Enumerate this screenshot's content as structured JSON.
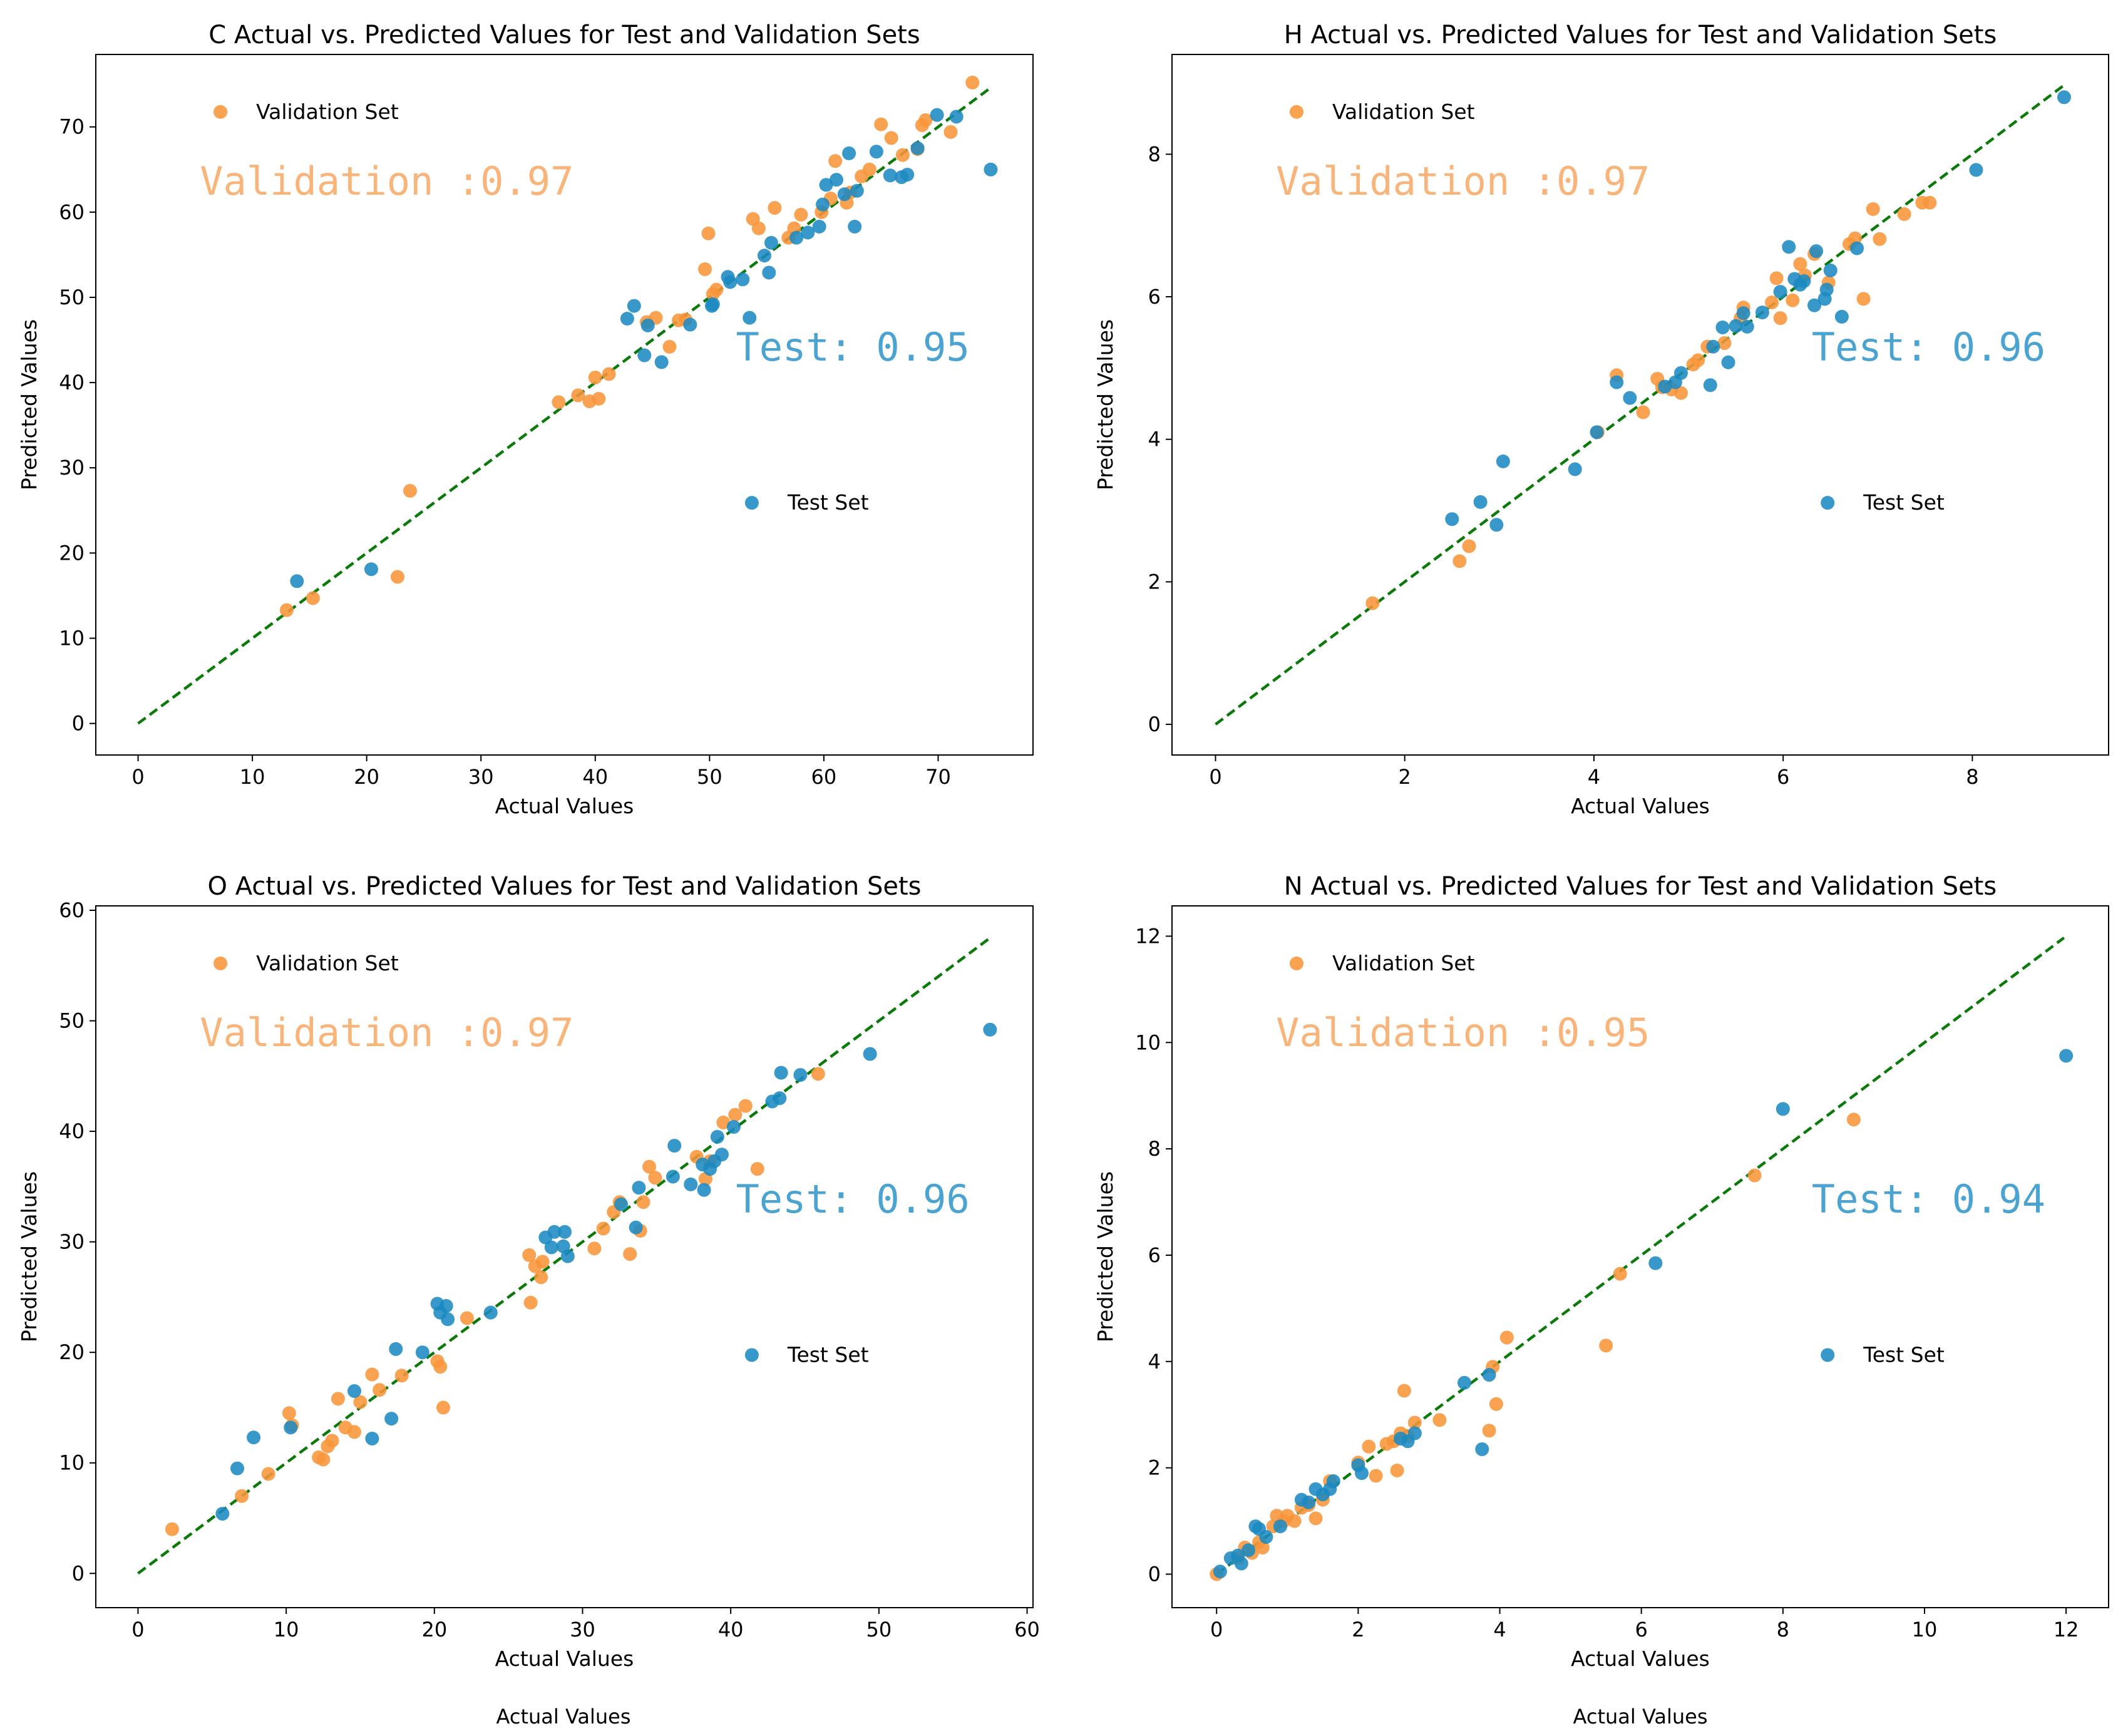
{
  "colors": {
    "test": "#1b8ac1",
    "validation": "#f7953a",
    "test_text": "#4aa3d1",
    "validation_text": "#f9b47a",
    "ideal_line": "#0b7a0b"
  },
  "chart_data": [
    {
      "id": "C",
      "type": "scatter",
      "title": "C Actual vs. Predicted Values for Test and Validation Sets",
      "xlabel": "Actual Values",
      "ylabel": "Predicted Values",
      "xlim": [
        -3.7,
        78.3
      ],
      "ylim": [
        -3.7,
        78.5
      ],
      "xticks": [
        0,
        10,
        20,
        30,
        40,
        50,
        60,
        70
      ],
      "yticks": [
        0,
        10,
        20,
        30,
        40,
        50,
        60,
        70
      ],
      "ideal_line": [
        0,
        74.6
      ],
      "legend_validation": "Validation Set",
      "legend_test": "Test Set",
      "validation_score": "Validation :0.97",
      "test_score": "Test: 0.95",
      "validation": [
        [
          13,
          13.3
        ],
        [
          15.3,
          14.7
        ],
        [
          22.7,
          17.2
        ],
        [
          23.8,
          27.3
        ],
        [
          36.8,
          37.7
        ],
        [
          38.5,
          38.5
        ],
        [
          39.5,
          37.8
        ],
        [
          40,
          40.6
        ],
        [
          40.3,
          38.1
        ],
        [
          41.2,
          41
        ],
        [
          44.5,
          47.1
        ],
        [
          45.3,
          47.6
        ],
        [
          46.5,
          44.2
        ],
        [
          47.3,
          47.3
        ],
        [
          47.9,
          47.4
        ],
        [
          49.6,
          53.3
        ],
        [
          49.9,
          57.5
        ],
        [
          50.3,
          50.4
        ],
        [
          50.6,
          50.9
        ],
        [
          53.8,
          59.2
        ],
        [
          54.3,
          58.1
        ],
        [
          55.7,
          60.5
        ],
        [
          56.9,
          57
        ],
        [
          57.4,
          58.1
        ],
        [
          58,
          59.7
        ],
        [
          59.8,
          60
        ],
        [
          60.6,
          61.6
        ],
        [
          61,
          66
        ],
        [
          62,
          61.1
        ],
        [
          62.3,
          62.3
        ],
        [
          63.3,
          64.2
        ],
        [
          64,
          65
        ],
        [
          65,
          70.3
        ],
        [
          65.9,
          68.7
        ],
        [
          66.9,
          66.7
        ],
        [
          68.2,
          67.4
        ],
        [
          68.6,
          70.2
        ],
        [
          68.9,
          70.8
        ],
        [
          71.1,
          69.4
        ],
        [
          73,
          75.2
        ]
      ],
      "test": [
        [
          13.9,
          16.7
        ],
        [
          20.4,
          18.1
        ],
        [
          42.8,
          47.5
        ],
        [
          43.4,
          49
        ],
        [
          44.3,
          43.2
        ],
        [
          44.6,
          46.7
        ],
        [
          45.8,
          42.4
        ],
        [
          48.3,
          46.8
        ],
        [
          50.2,
          49
        ],
        [
          50.3,
          49.2
        ],
        [
          51.6,
          52.4
        ],
        [
          51.8,
          51.8
        ],
        [
          52.9,
          52.1
        ],
        [
          53.5,
          47.6
        ],
        [
          54.8,
          54.9
        ],
        [
          55.2,
          52.9
        ],
        [
          55.4,
          56.4
        ],
        [
          57.6,
          57
        ],
        [
          58.6,
          57.6
        ],
        [
          59.6,
          58.3
        ],
        [
          59.9,
          60.9
        ],
        [
          60.2,
          63.2
        ],
        [
          61.1,
          63.8
        ],
        [
          61.8,
          62.1
        ],
        [
          62.2,
          66.9
        ],
        [
          62.7,
          58.3
        ],
        [
          62.9,
          62.5
        ],
        [
          64.6,
          67.1
        ],
        [
          65.8,
          64.3
        ],
        [
          66.8,
          64.1
        ],
        [
          67.3,
          64.4
        ],
        [
          68.2,
          67.5
        ],
        [
          69.9,
          71.4
        ],
        [
          71.6,
          71.2
        ],
        [
          74.6,
          65
        ]
      ]
    },
    {
      "id": "H",
      "type": "scatter",
      "title": "H Actual vs. Predicted Values for Test and Validation Sets",
      "xlabel": "Actual Values",
      "ylabel": "Predicted Values",
      "xlim": [
        -0.46,
        9.44
      ],
      "ylim": [
        -0.43,
        9.4
      ],
      "xticks": [
        0,
        2,
        4,
        6,
        8
      ],
      "yticks": [
        0,
        2,
        4,
        6,
        8
      ],
      "ideal_line": [
        0,
        8.97
      ],
      "legend_validation": "Validation Set",
      "legend_test": "Test Set",
      "validation_score": "Validation :0.97",
      "test_score": "Test: 0.96",
      "validation": [
        [
          1.66,
          1.7
        ],
        [
          2.58,
          2.29
        ],
        [
          2.68,
          2.5
        ],
        [
          4.04,
          4.1
        ],
        [
          4.24,
          4.9
        ],
        [
          4.52,
          4.38
        ],
        [
          4.67,
          4.85
        ],
        [
          4.72,
          4.73
        ],
        [
          4.82,
          4.7
        ],
        [
          4.92,
          4.65
        ],
        [
          5.05,
          5.05
        ],
        [
          5.1,
          5.11
        ],
        [
          5.2,
          5.3
        ],
        [
          5.38,
          5.35
        ],
        [
          5.55,
          5.7
        ],
        [
          5.58,
          5.85
        ],
        [
          5.88,
          5.92
        ],
        [
          5.93,
          6.26
        ],
        [
          5.97,
          5.7
        ],
        [
          6.1,
          5.95
        ],
        [
          6.18,
          6.46
        ],
        [
          6.23,
          6.3
        ],
        [
          6.33,
          6.6
        ],
        [
          6.48,
          6.2
        ],
        [
          6.7,
          6.74
        ],
        [
          6.76,
          6.82
        ],
        [
          6.85,
          5.97
        ],
        [
          6.95,
          7.23
        ],
        [
          7.02,
          6.81
        ],
        [
          7.28,
          7.16
        ],
        [
          7.47,
          7.32
        ],
        [
          7.55,
          7.32
        ]
      ],
      "test": [
        [
          2.5,
          2.88
        ],
        [
          2.8,
          3.12
        ],
        [
          2.97,
          2.8
        ],
        [
          3.04,
          3.69
        ],
        [
          3.8,
          3.58
        ],
        [
          4.03,
          4.1
        ],
        [
          4.24,
          4.8
        ],
        [
          4.38,
          4.58
        ],
        [
          4.75,
          4.74
        ],
        [
          4.86,
          4.8
        ],
        [
          4.92,
          4.93
        ],
        [
          5.23,
          4.76
        ],
        [
          5.26,
          5.3
        ],
        [
          5.36,
          5.57
        ],
        [
          5.42,
          5.08
        ],
        [
          5.5,
          5.59
        ],
        [
          5.58,
          5.77
        ],
        [
          5.62,
          5.58
        ],
        [
          5.78,
          5.78
        ],
        [
          5.97,
          6.07
        ],
        [
          6.06,
          6.7
        ],
        [
          6.12,
          6.25
        ],
        [
          6.18,
          6.17
        ],
        [
          6.22,
          6.22
        ],
        [
          6.33,
          5.88
        ],
        [
          6.35,
          6.64
        ],
        [
          6.44,
          5.97
        ],
        [
          6.46,
          6.1
        ],
        [
          6.5,
          6.37
        ],
        [
          6.62,
          5.72
        ],
        [
          6.78,
          6.68
        ],
        [
          8.04,
          7.78
        ],
        [
          8.97,
          8.8
        ]
      ]
    },
    {
      "id": "O",
      "type": "scatter",
      "title": "O Actual vs. Predicted Values for Test and Validation Sets",
      "xlabel": "Actual Values",
      "ylabel": "Predicted Values",
      "xlim": [
        -2.85,
        60.4
      ],
      "ylim": [
        -3.1,
        60.4
      ],
      "xticks": [
        0,
        10,
        20,
        30,
        40,
        50,
        60
      ],
      "yticks": [
        0,
        10,
        20,
        30,
        40,
        50,
        60
      ],
      "ideal_line": [
        0,
        57.5
      ],
      "legend_validation": "Validation Set",
      "legend_test": "Test Set",
      "validation_score": "Validation :0.97",
      "test_score": "Test: 0.96",
      "validation": [
        [
          2.3,
          4
        ],
        [
          7,
          7
        ],
        [
          8.8,
          9
        ],
        [
          10.2,
          14.5
        ],
        [
          10.4,
          13.4
        ],
        [
          12.2,
          10.5
        ],
        [
          12.5,
          10.3
        ],
        [
          12.8,
          11.5
        ],
        [
          13.1,
          12
        ],
        [
          13.5,
          15.8
        ],
        [
          14,
          13.2
        ],
        [
          14.6,
          12.8
        ],
        [
          15,
          15.5
        ],
        [
          15.8,
          18
        ],
        [
          16.3,
          16.6
        ],
        [
          17.8,
          17.9
        ],
        [
          20.2,
          19.2
        ],
        [
          20.4,
          18.7
        ],
        [
          20.6,
          15
        ],
        [
          22.2,
          23.1
        ],
        [
          26.4,
          28.8
        ],
        [
          26.5,
          24.5
        ],
        [
          26.8,
          27.8
        ],
        [
          27.2,
          26.8
        ],
        [
          27.3,
          28.2
        ],
        [
          30.8,
          29.4
        ],
        [
          31.4,
          31.2
        ],
        [
          32.1,
          32.7
        ],
        [
          32.5,
          33.6
        ],
        [
          33.2,
          28.9
        ],
        [
          33.9,
          31
        ],
        [
          34.1,
          33.6
        ],
        [
          34.5,
          36.8
        ],
        [
          34.9,
          35.8
        ],
        [
          37.7,
          37.7
        ],
        [
          38.3,
          35.7
        ],
        [
          38.6,
          37.3
        ],
        [
          39.5,
          40.8
        ],
        [
          40.3,
          41.5
        ],
        [
          41,
          42.3
        ],
        [
          41.8,
          36.6
        ],
        [
          45.9,
          45.2
        ]
      ],
      "test": [
        [
          5.7,
          5.4
        ],
        [
          6.7,
          9.5
        ],
        [
          7.8,
          12.3
        ],
        [
          10.3,
          13.2
        ],
        [
          14.6,
          16.5
        ],
        [
          15.8,
          12.2
        ],
        [
          17.1,
          14
        ],
        [
          17.4,
          20.3
        ],
        [
          19.2,
          20
        ],
        [
          20.2,
          24.4
        ],
        [
          20.4,
          23.6
        ],
        [
          20.8,
          24.2
        ],
        [
          20.9,
          23
        ],
        [
          23.8,
          23.6
        ],
        [
          27.5,
          30.4
        ],
        [
          27.9,
          29.5
        ],
        [
          28.1,
          30.9
        ],
        [
          28.7,
          29.6
        ],
        [
          28.8,
          30.9
        ],
        [
          29,
          28.7
        ],
        [
          32.6,
          33.4
        ],
        [
          33.6,
          31.3
        ],
        [
          33.8,
          34.9
        ],
        [
          36.1,
          35.9
        ],
        [
          36.2,
          38.7
        ],
        [
          37.3,
          35.2
        ],
        [
          38.1,
          37
        ],
        [
          38.2,
          34.7
        ],
        [
          38.6,
          36.6
        ],
        [
          38.9,
          37.3
        ],
        [
          39.1,
          39.5
        ],
        [
          39.4,
          37.9
        ],
        [
          40.2,
          40.4
        ],
        [
          42.8,
          42.7
        ],
        [
          43.3,
          43
        ],
        [
          43.4,
          45.3
        ],
        [
          44.7,
          45.1
        ],
        [
          49.4,
          47
        ],
        [
          57.5,
          49.2
        ]
      ]
    },
    {
      "id": "N",
      "type": "scatter",
      "title": "N Actual vs. Predicted Values for Test and Validation Sets",
      "xlabel": "Actual Values",
      "ylabel": "Predicted Values",
      "xlim": [
        -0.63,
        12.6
      ],
      "ylim": [
        -0.63,
        12.57
      ],
      "xticks": [
        0,
        2,
        4,
        6,
        8,
        10,
        12
      ],
      "yticks": [
        0,
        2,
        4,
        6,
        8,
        10,
        12
      ],
      "ideal_line": [
        0,
        11.97
      ],
      "legend_validation": "Validation Set",
      "legend_test": "Test Set",
      "validation_score": "Validation :0.95",
      "test_score": "Test: 0.94",
      "validation": [
        [
          0,
          0
        ],
        [
          0.3,
          0.3
        ],
        [
          0.4,
          0.5
        ],
        [
          0.5,
          0.4
        ],
        [
          0.6,
          0.6
        ],
        [
          0.65,
          0.5
        ],
        [
          0.8,
          0.9
        ],
        [
          0.85,
          1.1
        ],
        [
          0.95,
          1
        ],
        [
          1,
          1.1
        ],
        [
          1.1,
          1
        ],
        [
          1.2,
          1.25
        ],
        [
          1.3,
          1.3
        ],
        [
          1.4,
          1.05
        ],
        [
          1.5,
          1.4
        ],
        [
          1.6,
          1.75
        ],
        [
          2,
          2.1
        ],
        [
          2.15,
          2.4
        ],
        [
          2.25,
          1.85
        ],
        [
          2.4,
          2.45
        ],
        [
          2.5,
          2.5
        ],
        [
          2.55,
          1.95
        ],
        [
          2.6,
          2.65
        ],
        [
          2.65,
          3.45
        ],
        [
          2.7,
          2.6
        ],
        [
          2.8,
          2.85
        ],
        [
          3.15,
          2.9
        ],
        [
          3.85,
          2.7
        ],
        [
          3.9,
          3.9
        ],
        [
          3.95,
          3.2
        ],
        [
          4.1,
          4.45
        ],
        [
          5.5,
          4.3
        ],
        [
          5.7,
          5.65
        ],
        [
          7.6,
          7.5
        ],
        [
          9,
          8.55
        ]
      ],
      "test": [
        [
          0.05,
          0.05
        ],
        [
          0.2,
          0.3
        ],
        [
          0.3,
          0.35
        ],
        [
          0.35,
          0.2
        ],
        [
          0.45,
          0.45
        ],
        [
          0.55,
          0.9
        ],
        [
          0.6,
          0.85
        ],
        [
          0.7,
          0.7
        ],
        [
          0.9,
          0.9
        ],
        [
          1.2,
          1.4
        ],
        [
          1.3,
          1.35
        ],
        [
          1.4,
          1.6
        ],
        [
          1.5,
          1.5
        ],
        [
          1.6,
          1.6
        ],
        [
          1.65,
          1.75
        ],
        [
          2,
          2.05
        ],
        [
          2.05,
          1.9
        ],
        [
          2.6,
          2.55
        ],
        [
          2.7,
          2.5
        ],
        [
          2.8,
          2.65
        ],
        [
          3.5,
          3.6
        ],
        [
          3.75,
          2.35
        ],
        [
          3.85,
          3.75
        ],
        [
          6.2,
          5.85
        ],
        [
          8,
          8.75
        ],
        [
          12,
          9.75
        ]
      ]
    }
  ]
}
